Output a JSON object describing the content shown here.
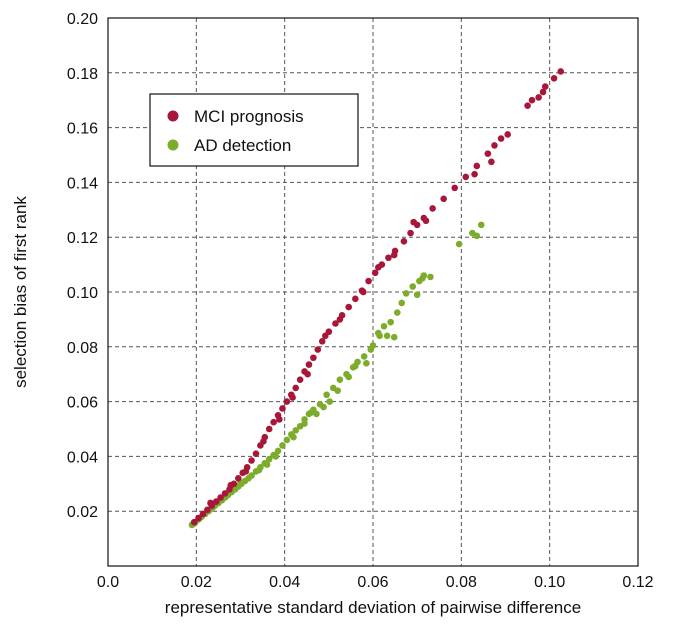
{
  "chart_data": {
    "type": "scatter",
    "title": "",
    "xlabel": "representative standard deviation of pairwise difference",
    "ylabel": "selection bias of first rank",
    "xlim": [
      0.0,
      0.12
    ],
    "ylim": [
      0.0,
      0.2
    ],
    "x_ticks": [
      0.0,
      0.02,
      0.04,
      0.06,
      0.08,
      0.1,
      0.12
    ],
    "x_tick_labels": [
      "0.0",
      "0.02",
      "0.04",
      "0.06",
      "0.08",
      "0.10",
      "0.12"
    ],
    "y_ticks": [
      0.02,
      0.04,
      0.06,
      0.08,
      0.1,
      0.12,
      0.14,
      0.16,
      0.18,
      0.2
    ],
    "y_tick_labels": [
      "0.02",
      "0.04",
      "0.06",
      "0.08",
      "0.10",
      "0.12",
      "0.14",
      "0.16",
      "0.18",
      "0.20"
    ],
    "grid": true,
    "legend_position": "top-left",
    "series": [
      {
        "name": "MCI prognosis",
        "color": "#a8173a",
        "points": [
          [
            0.0195,
            0.016
          ],
          [
            0.0205,
            0.0175
          ],
          [
            0.0215,
            0.019
          ],
          [
            0.0225,
            0.0205
          ],
          [
            0.0235,
            0.022
          ],
          [
            0.0245,
            0.0235
          ],
          [
            0.0255,
            0.025
          ],
          [
            0.0265,
            0.0265
          ],
          [
            0.0275,
            0.028
          ],
          [
            0.0285,
            0.03
          ],
          [
            0.0295,
            0.032
          ],
          [
            0.0305,
            0.034
          ],
          [
            0.0315,
            0.036
          ],
          [
            0.0325,
            0.0385
          ],
          [
            0.0335,
            0.041
          ],
          [
            0.0345,
            0.044
          ],
          [
            0.0355,
            0.047
          ],
          [
            0.0365,
            0.05
          ],
          [
            0.0375,
            0.0525
          ],
          [
            0.0385,
            0.055
          ],
          [
            0.0395,
            0.0575
          ],
          [
            0.0405,
            0.06
          ],
          [
            0.0415,
            0.0625
          ],
          [
            0.0425,
            0.065
          ],
          [
            0.0435,
            0.068
          ],
          [
            0.0445,
            0.071
          ],
          [
            0.0455,
            0.0735
          ],
          [
            0.0465,
            0.076
          ],
          [
            0.0475,
            0.079
          ],
          [
            0.0485,
            0.082
          ],
          [
            0.05,
            0.0855
          ],
          [
            0.0515,
            0.0885
          ],
          [
            0.053,
            0.0915
          ],
          [
            0.0545,
            0.0945
          ],
          [
            0.056,
            0.0975
          ],
          [
            0.0575,
            0.1005
          ],
          [
            0.059,
            0.104
          ],
          [
            0.0605,
            0.107
          ],
          [
            0.062,
            0.11
          ],
          [
            0.0635,
            0.1125
          ],
          [
            0.065,
            0.115
          ],
          [
            0.067,
            0.1185
          ],
          [
            0.0685,
            0.1215
          ],
          [
            0.07,
            0.1245
          ],
          [
            0.0715,
            0.127
          ],
          [
            0.0735,
            0.1305
          ],
          [
            0.076,
            0.134
          ],
          [
            0.0785,
            0.138
          ],
          [
            0.081,
            0.142
          ],
          [
            0.0835,
            0.146
          ],
          [
            0.086,
            0.1505
          ],
          [
            0.0875,
            0.1535
          ],
          [
            0.089,
            0.156
          ],
          [
            0.0905,
            0.1575
          ],
          [
            0.095,
            0.168
          ],
          [
            0.0975,
            0.171
          ],
          [
            0.0985,
            0.173
          ],
          [
            0.099,
            0.175
          ],
          [
            0.101,
            0.178
          ],
          [
            0.1025,
            0.1805
          ],
          [
            0.0232,
            0.023
          ],
          [
            0.0278,
            0.0295
          ],
          [
            0.0312,
            0.0345
          ],
          [
            0.0352,
            0.0455
          ],
          [
            0.0388,
            0.0535
          ],
          [
            0.0418,
            0.0615
          ],
          [
            0.0452,
            0.07
          ],
          [
            0.0492,
            0.084
          ],
          [
            0.0525,
            0.09
          ],
          [
            0.0578,
            0.1
          ],
          [
            0.0612,
            0.109
          ],
          [
            0.0648,
            0.1135
          ],
          [
            0.0692,
            0.1255
          ],
          [
            0.072,
            0.126
          ],
          [
            0.083,
            0.143
          ],
          [
            0.0868,
            0.1475
          ],
          [
            0.096,
            0.17
          ]
        ]
      },
      {
        "name": "AD detection",
        "color": "#7cac2c",
        "points": [
          [
            0.019,
            0.015
          ],
          [
            0.0198,
            0.016
          ],
          [
            0.0205,
            0.017
          ],
          [
            0.0212,
            0.018
          ],
          [
            0.022,
            0.019
          ],
          [
            0.0228,
            0.02
          ],
          [
            0.0235,
            0.021
          ],
          [
            0.0242,
            0.022
          ],
          [
            0.025,
            0.023
          ],
          [
            0.0258,
            0.024
          ],
          [
            0.0265,
            0.025
          ],
          [
            0.0272,
            0.026
          ],
          [
            0.028,
            0.027
          ],
          [
            0.0288,
            0.028
          ],
          [
            0.0295,
            0.029
          ],
          [
            0.0302,
            0.03
          ],
          [
            0.031,
            0.031
          ],
          [
            0.0318,
            0.032
          ],
          [
            0.0325,
            0.033
          ],
          [
            0.0335,
            0.0345
          ],
          [
            0.0345,
            0.036
          ],
          [
            0.0355,
            0.0375
          ],
          [
            0.0365,
            0.039
          ],
          [
            0.0375,
            0.0405
          ],
          [
            0.0385,
            0.042
          ],
          [
            0.0395,
            0.044
          ],
          [
            0.0405,
            0.046
          ],
          [
            0.0415,
            0.048
          ],
          [
            0.0425,
            0.0495
          ],
          [
            0.0435,
            0.051
          ],
          [
            0.0445,
            0.0535
          ],
          [
            0.0455,
            0.0555
          ],
          [
            0.0465,
            0.057
          ],
          [
            0.048,
            0.059
          ],
          [
            0.0495,
            0.0625
          ],
          [
            0.051,
            0.065
          ],
          [
            0.0525,
            0.068
          ],
          [
            0.054,
            0.07
          ],
          [
            0.0555,
            0.0725
          ],
          [
            0.0565,
            0.0745
          ],
          [
            0.058,
            0.0765
          ],
          [
            0.0595,
            0.079
          ],
          [
            0.06,
            0.0805
          ],
          [
            0.0615,
            0.084
          ],
          [
            0.0625,
            0.0875
          ],
          [
            0.064,
            0.089
          ],
          [
            0.0655,
            0.0925
          ],
          [
            0.0665,
            0.096
          ],
          [
            0.0675,
            0.0995
          ],
          [
            0.069,
            0.102
          ],
          [
            0.0705,
            0.104
          ],
          [
            0.0715,
            0.106
          ],
          [
            0.073,
            0.1055
          ],
          [
            0.0795,
            0.1175
          ],
          [
            0.0825,
            0.1215
          ],
          [
            0.0835,
            0.1205
          ],
          [
            0.0845,
            0.1245
          ],
          [
            0.0445,
            0.052
          ],
          [
            0.0472,
            0.0555
          ],
          [
            0.0488,
            0.058
          ],
          [
            0.0502,
            0.06
          ],
          [
            0.0545,
            0.069
          ],
          [
            0.056,
            0.073
          ],
          [
            0.0585,
            0.074
          ],
          [
            0.0612,
            0.085
          ],
          [
            0.0632,
            0.084
          ],
          [
            0.0648,
            0.0835
          ],
          [
            0.07,
            0.099
          ],
          [
            0.0712,
            0.105
          ],
          [
            0.042,
            0.047
          ],
          [
            0.038,
            0.04
          ],
          [
            0.036,
            0.037
          ],
          [
            0.0342,
            0.035
          ],
          [
            0.03,
            0.0305
          ],
          [
            0.0268,
            0.0255
          ],
          [
            0.0238,
            0.0215
          ],
          [
            0.0208,
            0.0175
          ],
          [
            0.0195,
            0.0155
          ],
          [
            0.046,
            0.056
          ],
          [
            0.052,
            0.064
          ]
        ]
      }
    ]
  }
}
